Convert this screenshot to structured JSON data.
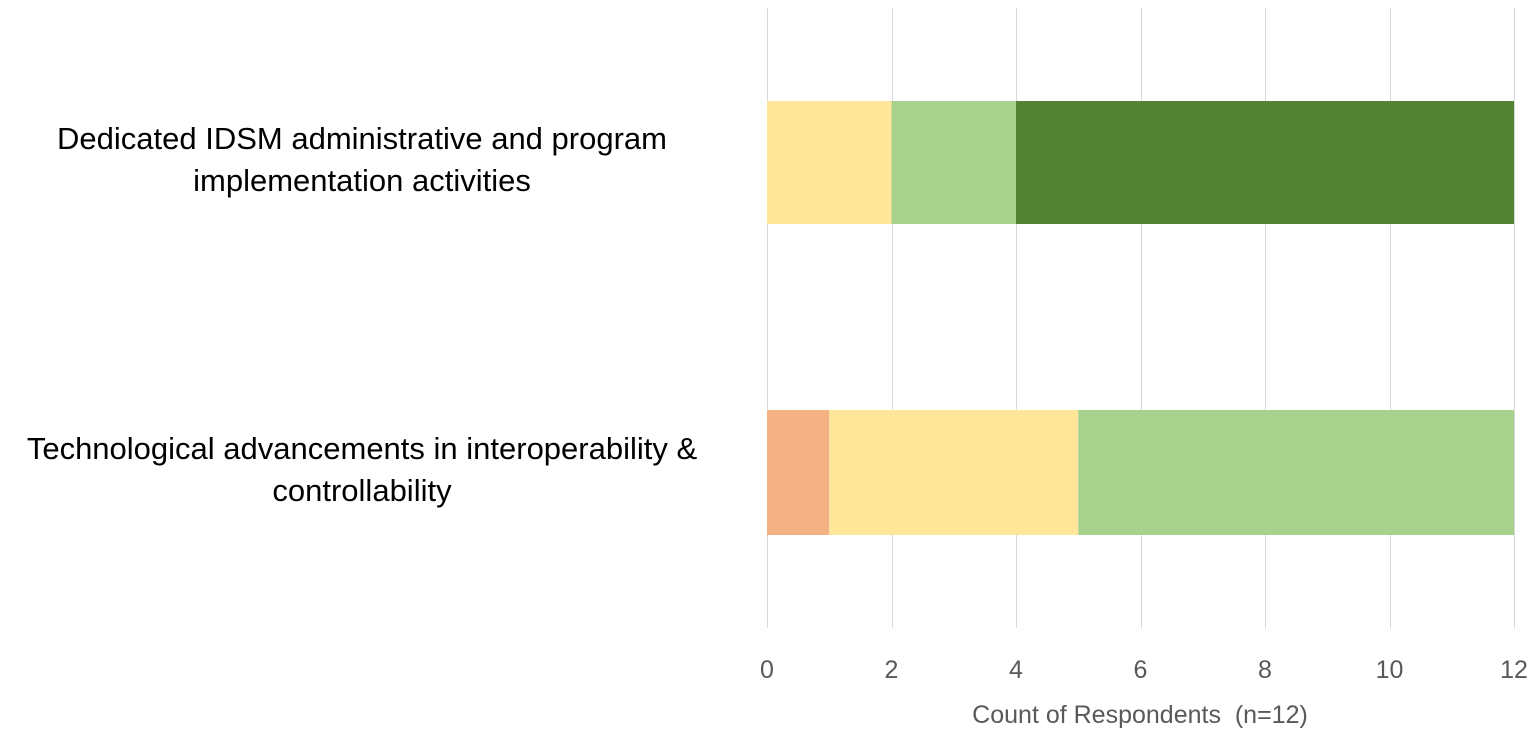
{
  "chart_data": {
    "type": "bar",
    "orientation": "horizontal",
    "stacked": true,
    "categories": [
      [
        "Dedicated IDSM administrative and program",
        "implementation activities"
      ],
      [
        "Technological advancements in interoperability &",
        "controllability"
      ]
    ],
    "series": [
      {
        "color": "#F4B183",
        "values": [
          0,
          1
        ]
      },
      {
        "color": "#FFE699",
        "values": [
          2,
          4
        ]
      },
      {
        "color": "#A9D18E",
        "values": [
          2,
          7
        ]
      },
      {
        "color": "#548235",
        "values": [
          8,
          0
        ]
      }
    ],
    "xlabel": "Count of Respondents  (n=12)",
    "xlim": [
      0,
      12
    ],
    "xticks": [
      0,
      2,
      4,
      6,
      8,
      10,
      12
    ],
    "grid": true,
    "legend": "none"
  }
}
